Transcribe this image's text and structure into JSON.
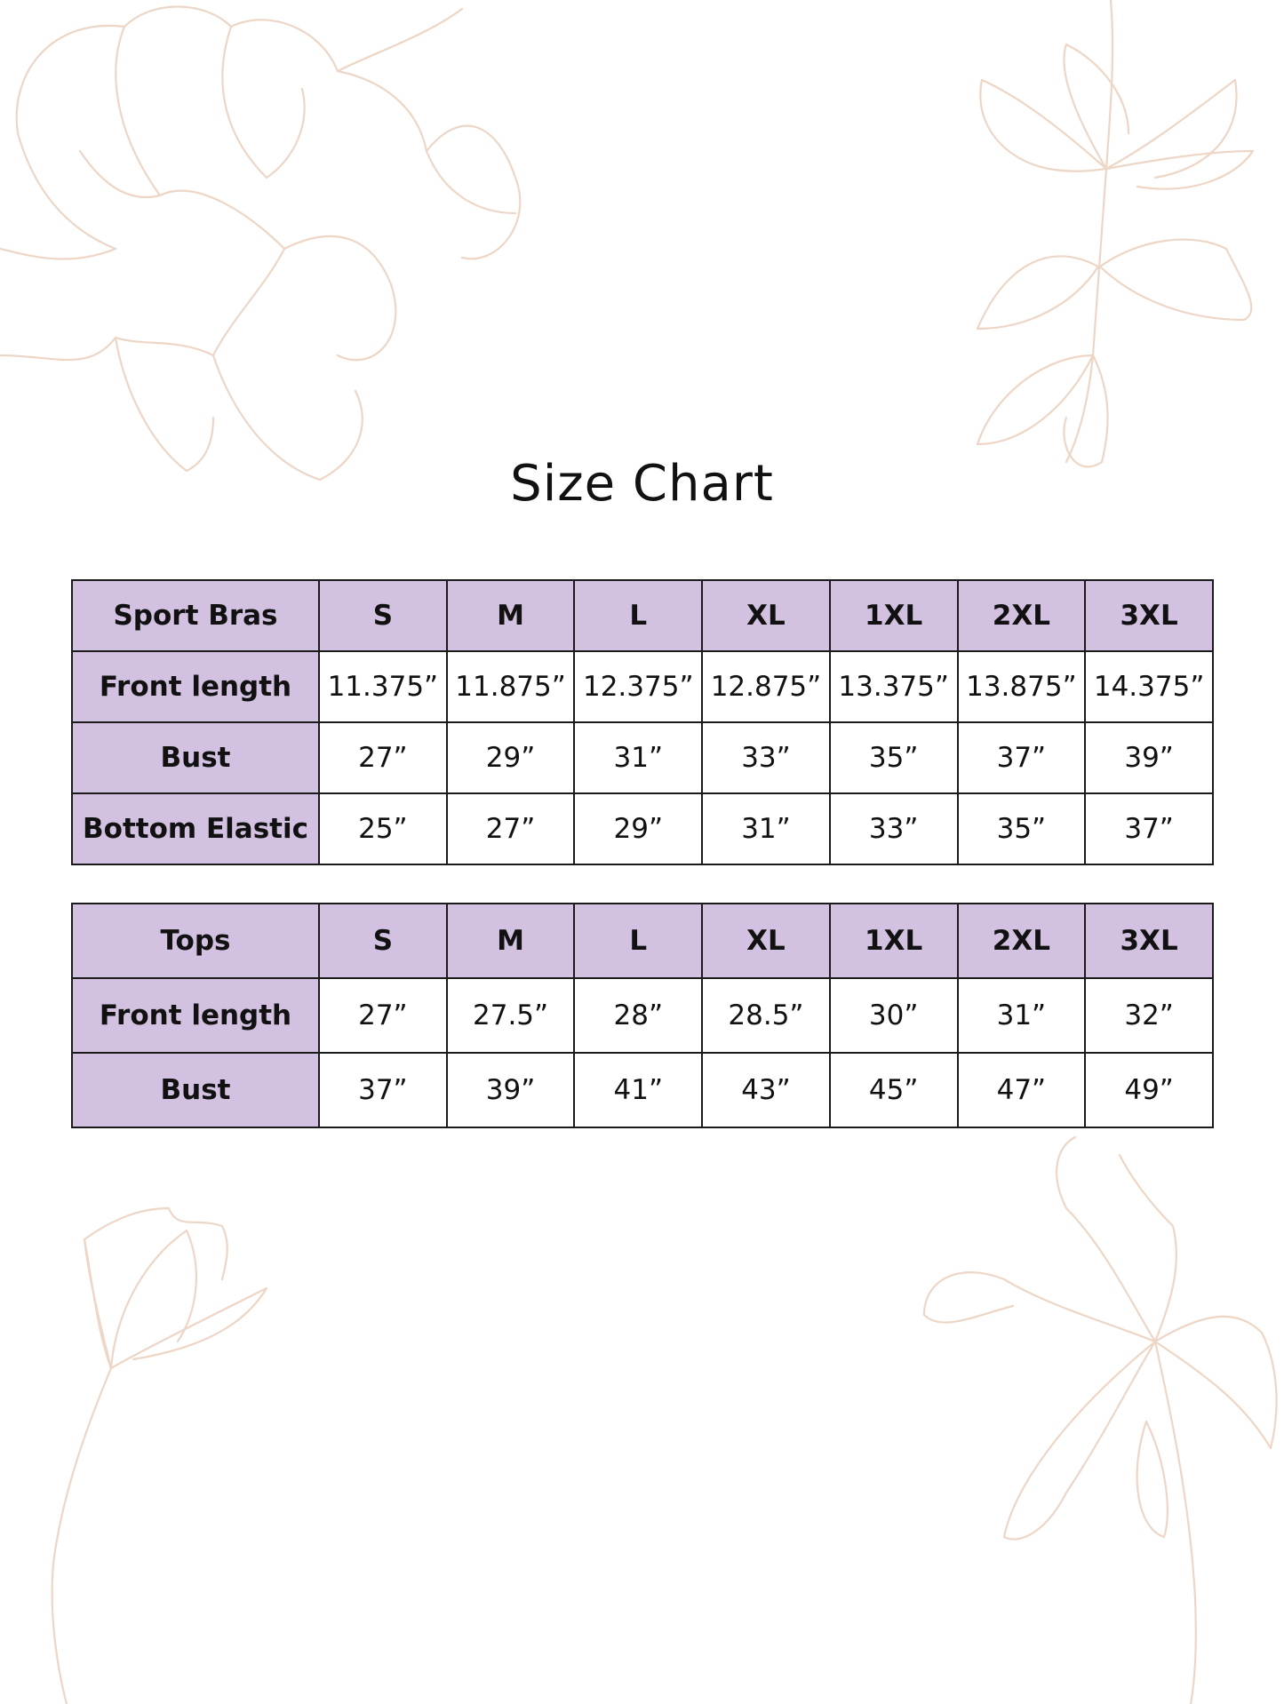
{
  "title": "Size Chart",
  "decoration_color": "#edd6c6",
  "header_color": "#d2c1e0",
  "tables": [
    {
      "name": "Sport Bras",
      "sizes": [
        "S",
        "M",
        "L",
        "XL",
        "1XL",
        "2XL",
        "3XL"
      ],
      "rows": [
        {
          "label": "Front length",
          "values": [
            "11.375”",
            "11.875”",
            "12.375”",
            "12.875”",
            "13.375”",
            "13.875”",
            "14.375”"
          ]
        },
        {
          "label": "Bust",
          "values": [
            "27”",
            "29”",
            "31”",
            "33”",
            "35”",
            "37”",
            "39”"
          ]
        },
        {
          "label": "Bottom Elastic",
          "values": [
            "25”",
            "27”",
            "29”",
            "31”",
            "33”",
            "35”",
            "37”"
          ]
        }
      ]
    },
    {
      "name": "Tops",
      "sizes": [
        "S",
        "M",
        "L",
        "XL",
        "1XL",
        "2XL",
        "3XL"
      ],
      "rows": [
        {
          "label": "Front length",
          "values": [
            "27”",
            "27.5”",
            "28”",
            "28.5”",
            "30”",
            "31”",
            "32”"
          ]
        },
        {
          "label": "Bust",
          "values": [
            "37”",
            "39”",
            "41”",
            "43”",
            "45”",
            "47”",
            "49”"
          ]
        }
      ]
    }
  ]
}
